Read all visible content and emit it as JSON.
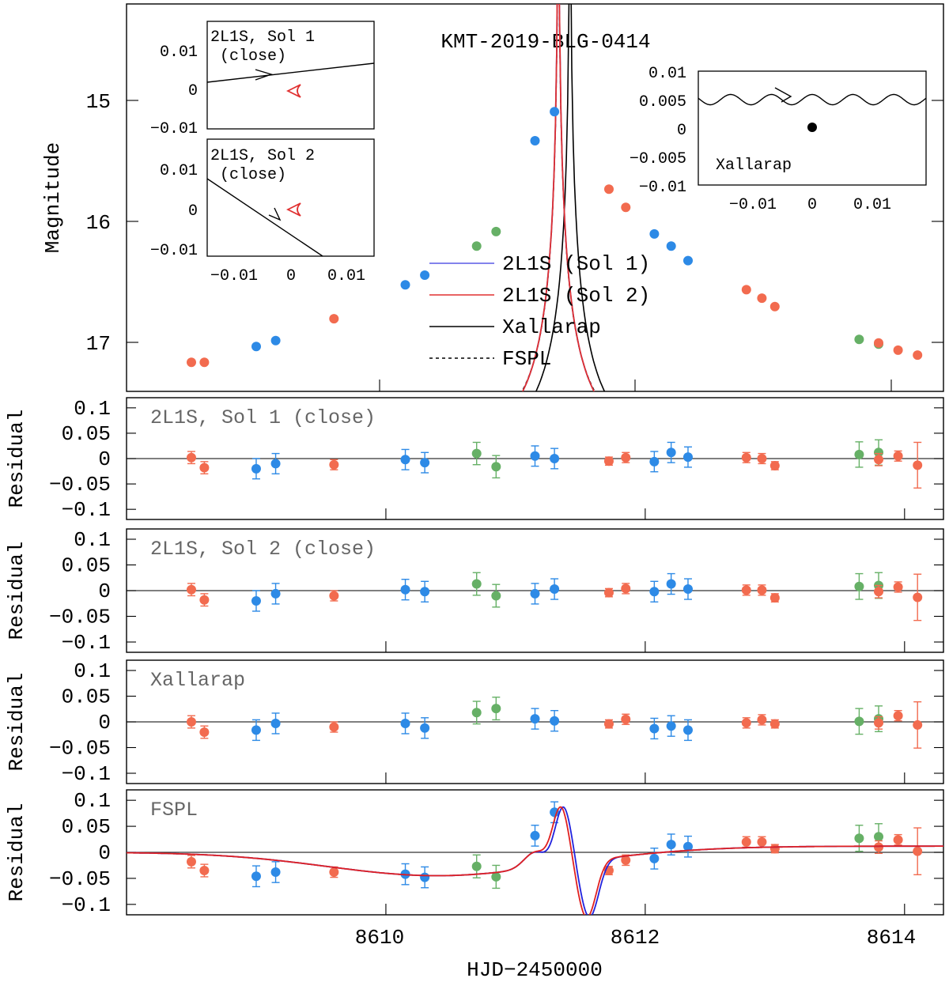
{
  "chart_data": [
    {
      "type": "line",
      "title": "KMT-2019-BLG-0414",
      "xlabel": "HJD−2450000",
      "ylabel": "Magnitude",
      "xlim": [
        8608.0,
        8614.3
      ],
      "ylim": [
        17.4,
        14.2
      ],
      "x_ticks": [
        "8610",
        "8612",
        "8614"
      ],
      "y_ticks": [
        "15",
        "16",
        "17"
      ],
      "legend": [
        {
          "name": "2L1S (Sol 1)",
          "color": "#5a5ae6",
          "dash": false
        },
        {
          "name": "2L1S (Sol 2)",
          "color": "#e03030",
          "dash": false
        },
        {
          "name": "Xallarap",
          "color": "#000000",
          "dash": false
        },
        {
          "name": "FSPL",
          "color": "#000000",
          "dash": true
        }
      ],
      "colors": {
        "KMTC": "#f26b4f",
        "KMTS": "#2d8ae6",
        "KMTA": "#66b066"
      },
      "models": {
        "sol1": {
          "t0": 8611.33,
          "u0": 0.005,
          "tE": 0.62,
          "color": "#5a5ae6"
        },
        "sol2": {
          "t0": 8611.33,
          "u0": 0.005,
          "tE": 0.62,
          "color": "#e03030"
        },
        "xallarap": {
          "t0": 8611.42,
          "u0": 0.0052,
          "tE": 0.6,
          "color": "#000000"
        },
        "fspl": {
          "t0": 8611.33,
          "u0": 0.006,
          "tE": 0.65,
          "color": "#000000"
        }
      },
      "points": [
        {
          "x": 8608.5,
          "mag": 17.16,
          "site": "KMTC"
        },
        {
          "x": 8608.6,
          "mag": 17.16,
          "site": "KMTC"
        },
        {
          "x": 8609.0,
          "mag": 17.03,
          "site": "KMTS"
        },
        {
          "x": 8609.15,
          "mag": 16.98,
          "site": "KMTS"
        },
        {
          "x": 8609.6,
          "mag": 16.8,
          "site": "KMTC"
        },
        {
          "x": 8610.15,
          "mag": 16.52,
          "site": "KMTS"
        },
        {
          "x": 8610.3,
          "mag": 16.44,
          "site": "KMTS"
        },
        {
          "x": 8610.7,
          "mag": 16.2,
          "site": "KMTA"
        },
        {
          "x": 8610.85,
          "mag": 16.08,
          "site": "KMTA"
        },
        {
          "x": 8611.15,
          "mag": 15.33,
          "site": "KMTS"
        },
        {
          "x": 8611.3,
          "mag": 15.09,
          "site": "KMTS"
        },
        {
          "x": 8611.72,
          "mag": 15.73,
          "site": "KMTC"
        },
        {
          "x": 8611.85,
          "mag": 15.88,
          "site": "KMTC"
        },
        {
          "x": 8612.07,
          "mag": 16.1,
          "site": "KMTS"
        },
        {
          "x": 8612.2,
          "mag": 16.2,
          "site": "KMTS"
        },
        {
          "x": 8612.33,
          "mag": 16.32,
          "site": "KMTS"
        },
        {
          "x": 8612.78,
          "mag": 16.56,
          "site": "KMTC"
        },
        {
          "x": 8612.9,
          "mag": 16.63,
          "site": "KMTC"
        },
        {
          "x": 8613.0,
          "mag": 16.7,
          "site": "KMTC"
        },
        {
          "x": 8613.65,
          "mag": 16.97,
          "site": "KMTA"
        },
        {
          "x": 8613.8,
          "mag": 17.01,
          "site": "KMTA"
        },
        {
          "x": 8613.8,
          "mag": 17.0,
          "site": "KMTC"
        },
        {
          "x": 8613.95,
          "mag": 17.06,
          "site": "KMTC"
        },
        {
          "x": 8614.1,
          "mag": 17.1,
          "site": "KMTC"
        }
      ]
    },
    {
      "type": "scatter",
      "title": "2L1S, Sol 1 (close)",
      "ylabel": "Residual",
      "ylim": [
        -0.12,
        0.12
      ],
      "y_ticks": [
        "0.1",
        "0.05",
        "0",
        "−0.05",
        "−0.1"
      ],
      "points": [
        {
          "x": 8608.5,
          "y": 0.002,
          "e": 0.012,
          "site": "KMTC"
        },
        {
          "x": 8608.6,
          "y": -0.018,
          "e": 0.012,
          "site": "KMTC"
        },
        {
          "x": 8609.0,
          "y": -0.02,
          "e": 0.02,
          "site": "KMTS"
        },
        {
          "x": 8609.15,
          "y": -0.01,
          "e": 0.02,
          "site": "KMTS"
        },
        {
          "x": 8609.6,
          "y": -0.012,
          "e": 0.01,
          "site": "KMTC"
        },
        {
          "x": 8610.15,
          "y": -0.002,
          "e": 0.02,
          "site": "KMTS"
        },
        {
          "x": 8610.3,
          "y": -0.008,
          "e": 0.02,
          "site": "KMTS"
        },
        {
          "x": 8610.7,
          "y": 0.01,
          "e": 0.022,
          "site": "KMTA"
        },
        {
          "x": 8610.85,
          "y": -0.016,
          "e": 0.022,
          "site": "KMTA"
        },
        {
          "x": 8611.15,
          "y": 0.005,
          "e": 0.02,
          "site": "KMTS"
        },
        {
          "x": 8611.3,
          "y": 0.0,
          "e": 0.02,
          "site": "KMTS"
        },
        {
          "x": 8611.72,
          "y": -0.005,
          "e": 0.008,
          "site": "KMTC"
        },
        {
          "x": 8611.85,
          "y": 0.002,
          "e": 0.01,
          "site": "KMTC"
        },
        {
          "x": 8612.07,
          "y": -0.006,
          "e": 0.02,
          "site": "KMTS"
        },
        {
          "x": 8612.2,
          "y": 0.012,
          "e": 0.02,
          "site": "KMTS"
        },
        {
          "x": 8612.33,
          "y": 0.003,
          "e": 0.02,
          "site": "KMTS"
        },
        {
          "x": 8612.78,
          "y": 0.002,
          "e": 0.01,
          "site": "KMTC"
        },
        {
          "x": 8612.9,
          "y": 0.0,
          "e": 0.01,
          "site": "KMTC"
        },
        {
          "x": 8613.0,
          "y": -0.014,
          "e": 0.008,
          "site": "KMTC"
        },
        {
          "x": 8613.65,
          "y": 0.008,
          "e": 0.025,
          "site": "KMTA"
        },
        {
          "x": 8613.8,
          "y": 0.012,
          "e": 0.025,
          "site": "KMTA"
        },
        {
          "x": 8613.8,
          "y": -0.002,
          "e": 0.012,
          "site": "KMTC"
        },
        {
          "x": 8613.95,
          "y": 0.005,
          "e": 0.01,
          "site": "KMTC"
        },
        {
          "x": 8614.1,
          "y": -0.013,
          "e": 0.045,
          "site": "KMTC"
        }
      ]
    },
    {
      "type": "scatter",
      "title": "2L1S, Sol 2 (close)",
      "ylabel": "Residual",
      "ylim": [
        -0.12,
        0.12
      ],
      "y_ticks": [
        "0.1",
        "0.05",
        "0",
        "−0.05",
        "−0.1"
      ],
      "points": [
        {
          "x": 8608.5,
          "y": 0.002,
          "e": 0.012,
          "site": "KMTC"
        },
        {
          "x": 8608.6,
          "y": -0.018,
          "e": 0.012,
          "site": "KMTC"
        },
        {
          "x": 8609.0,
          "y": -0.02,
          "e": 0.02,
          "site": "KMTS"
        },
        {
          "x": 8609.15,
          "y": -0.006,
          "e": 0.02,
          "site": "KMTS"
        },
        {
          "x": 8609.6,
          "y": -0.01,
          "e": 0.01,
          "site": "KMTC"
        },
        {
          "x": 8610.15,
          "y": 0.002,
          "e": 0.02,
          "site": "KMTS"
        },
        {
          "x": 8610.3,
          "y": -0.002,
          "e": 0.02,
          "site": "KMTS"
        },
        {
          "x": 8610.7,
          "y": 0.013,
          "e": 0.022,
          "site": "KMTA"
        },
        {
          "x": 8610.85,
          "y": -0.01,
          "e": 0.022,
          "site": "KMTA"
        },
        {
          "x": 8611.15,
          "y": -0.006,
          "e": 0.02,
          "site": "KMTS"
        },
        {
          "x": 8611.3,
          "y": 0.003,
          "e": 0.02,
          "site": "KMTS"
        },
        {
          "x": 8611.72,
          "y": -0.004,
          "e": 0.008,
          "site": "KMTC"
        },
        {
          "x": 8611.85,
          "y": 0.004,
          "e": 0.01,
          "site": "KMTC"
        },
        {
          "x": 8612.07,
          "y": -0.002,
          "e": 0.02,
          "site": "KMTS"
        },
        {
          "x": 8612.2,
          "y": 0.013,
          "e": 0.02,
          "site": "KMTS"
        },
        {
          "x": 8612.33,
          "y": 0.003,
          "e": 0.02,
          "site": "KMTS"
        },
        {
          "x": 8612.78,
          "y": 0.001,
          "e": 0.01,
          "site": "KMTC"
        },
        {
          "x": 8612.9,
          "y": 0.001,
          "e": 0.01,
          "site": "KMTC"
        },
        {
          "x": 8613.0,
          "y": -0.014,
          "e": 0.008,
          "site": "KMTC"
        },
        {
          "x": 8613.65,
          "y": 0.008,
          "e": 0.025,
          "site": "KMTA"
        },
        {
          "x": 8613.8,
          "y": 0.01,
          "e": 0.025,
          "site": "KMTA"
        },
        {
          "x": 8613.8,
          "y": -0.002,
          "e": 0.012,
          "site": "KMTC"
        },
        {
          "x": 8613.95,
          "y": 0.007,
          "e": 0.01,
          "site": "KMTC"
        },
        {
          "x": 8614.1,
          "y": -0.013,
          "e": 0.045,
          "site": "KMTC"
        }
      ]
    },
    {
      "type": "scatter",
      "title": "Xallarap",
      "ylabel": "Residual",
      "ylim": [
        -0.12,
        0.12
      ],
      "y_ticks": [
        "0.1",
        "0.05",
        "0",
        "−0.05",
        "−0.1"
      ],
      "points": [
        {
          "x": 8608.5,
          "y": 0.0,
          "e": 0.012,
          "site": "KMTC"
        },
        {
          "x": 8608.6,
          "y": -0.02,
          "e": 0.012,
          "site": "KMTC"
        },
        {
          "x": 8609.0,
          "y": -0.016,
          "e": 0.02,
          "site": "KMTS"
        },
        {
          "x": 8609.15,
          "y": -0.003,
          "e": 0.02,
          "site": "KMTS"
        },
        {
          "x": 8609.6,
          "y": -0.01,
          "e": 0.01,
          "site": "KMTC"
        },
        {
          "x": 8610.15,
          "y": -0.003,
          "e": 0.02,
          "site": "KMTS"
        },
        {
          "x": 8610.3,
          "y": -0.012,
          "e": 0.02,
          "site": "KMTS"
        },
        {
          "x": 8610.7,
          "y": 0.018,
          "e": 0.022,
          "site": "KMTA"
        },
        {
          "x": 8610.85,
          "y": 0.026,
          "e": 0.022,
          "site": "KMTA"
        },
        {
          "x": 8611.15,
          "y": 0.006,
          "e": 0.02,
          "site": "KMTS"
        },
        {
          "x": 8611.3,
          "y": 0.002,
          "e": 0.02,
          "site": "KMTS"
        },
        {
          "x": 8611.72,
          "y": -0.004,
          "e": 0.008,
          "site": "KMTC"
        },
        {
          "x": 8611.85,
          "y": 0.005,
          "e": 0.01,
          "site": "KMTC"
        },
        {
          "x": 8612.07,
          "y": -0.013,
          "e": 0.02,
          "site": "KMTS"
        },
        {
          "x": 8612.2,
          "y": -0.008,
          "e": 0.02,
          "site": "KMTS"
        },
        {
          "x": 8612.33,
          "y": -0.016,
          "e": 0.02,
          "site": "KMTS"
        },
        {
          "x": 8612.78,
          "y": -0.002,
          "e": 0.01,
          "site": "KMTC"
        },
        {
          "x": 8612.9,
          "y": 0.004,
          "e": 0.01,
          "site": "KMTC"
        },
        {
          "x": 8613.0,
          "y": -0.004,
          "e": 0.008,
          "site": "KMTC"
        },
        {
          "x": 8613.65,
          "y": 0.001,
          "e": 0.025,
          "site": "KMTA"
        },
        {
          "x": 8613.8,
          "y": 0.006,
          "e": 0.025,
          "site": "KMTA"
        },
        {
          "x": 8613.8,
          "y": -0.002,
          "e": 0.012,
          "site": "KMTC"
        },
        {
          "x": 8613.95,
          "y": 0.012,
          "e": 0.01,
          "site": "KMTC"
        },
        {
          "x": 8614.1,
          "y": -0.006,
          "e": 0.045,
          "site": "KMTC"
        }
      ]
    },
    {
      "type": "scatter",
      "title": "FSPL",
      "ylabel": "Residual",
      "xlabel": "HJD−2450000",
      "ylim": [
        -0.12,
        0.12
      ],
      "y_ticks": [
        "0.1",
        "0.05",
        "0",
        "−0.05",
        "−0.1"
      ],
      "x_ticks": [
        "8610",
        "8612",
        "8614"
      ],
      "points": [
        {
          "x": 8608.5,
          "y": -0.018,
          "e": 0.012,
          "site": "KMTC"
        },
        {
          "x": 8608.6,
          "y": -0.035,
          "e": 0.012,
          "site": "KMTC"
        },
        {
          "x": 8609.0,
          "y": -0.046,
          "e": 0.02,
          "site": "KMTS"
        },
        {
          "x": 8609.15,
          "y": -0.038,
          "e": 0.02,
          "site": "KMTS"
        },
        {
          "x": 8609.6,
          "y": -0.038,
          "e": 0.01,
          "site": "KMTC"
        },
        {
          "x": 8610.15,
          "y": -0.042,
          "e": 0.02,
          "site": "KMTS"
        },
        {
          "x": 8610.3,
          "y": -0.048,
          "e": 0.02,
          "site": "KMTS"
        },
        {
          "x": 8610.7,
          "y": -0.027,
          "e": 0.022,
          "site": "KMTA"
        },
        {
          "x": 8610.85,
          "y": -0.047,
          "e": 0.022,
          "site": "KMTA"
        },
        {
          "x": 8611.15,
          "y": 0.032,
          "e": 0.02,
          "site": "KMTS"
        },
        {
          "x": 8611.3,
          "y": 0.077,
          "e": 0.02,
          "site": "KMTS"
        },
        {
          "x": 8611.72,
          "y": -0.035,
          "e": 0.008,
          "site": "KMTC"
        },
        {
          "x": 8611.85,
          "y": -0.015,
          "e": 0.01,
          "site": "KMTC"
        },
        {
          "x": 8612.07,
          "y": -0.012,
          "e": 0.02,
          "site": "KMTS"
        },
        {
          "x": 8612.2,
          "y": 0.015,
          "e": 0.02,
          "site": "KMTS"
        },
        {
          "x": 8612.33,
          "y": 0.011,
          "e": 0.02,
          "site": "KMTS"
        },
        {
          "x": 8612.78,
          "y": 0.02,
          "e": 0.01,
          "site": "KMTC"
        },
        {
          "x": 8612.9,
          "y": 0.02,
          "e": 0.01,
          "site": "KMTC"
        },
        {
          "x": 8613.0,
          "y": 0.007,
          "e": 0.008,
          "site": "KMTC"
        },
        {
          "x": 8613.65,
          "y": 0.027,
          "e": 0.025,
          "site": "KMTA"
        },
        {
          "x": 8613.8,
          "y": 0.03,
          "e": 0.025,
          "site": "KMTA"
        },
        {
          "x": 8613.8,
          "y": 0.01,
          "e": 0.012,
          "site": "KMTC"
        },
        {
          "x": 8613.95,
          "y": 0.024,
          "e": 0.01,
          "site": "KMTC"
        },
        {
          "x": 8614.1,
          "y": 0.002,
          "e": 0.045,
          "site": "KMTC"
        }
      ]
    }
  ],
  "insets": {
    "sol1": {
      "label_line1": "2L1S, Sol 1",
      "label_line2": "(close)",
      "y_ticks": [
        "0.01",
        "0",
        "−0.01"
      ],
      "range": [
        -0.015,
        0.015
      ],
      "y_range": [
        -0.013,
        0.018
      ]
    },
    "sol2": {
      "label_line1": "2L1S, Sol 2",
      "label_line2": "(close)",
      "y_ticks": [
        "0.01",
        "0",
        "−0.01"
      ],
      "x_ticks": [
        "−0.01",
        "0",
        "0.01"
      ],
      "range": [
        -0.015,
        0.015
      ],
      "y_range": [
        -0.013,
        0.018
      ]
    },
    "xallarap": {
      "label": "Xallarap",
      "y_ticks": [
        "0.01",
        "0.005",
        "0",
        "−0.005",
        "−0.01"
      ],
      "x_ticks": [
        "−0.01",
        "0",
        "0.01"
      ],
      "range": [
        -0.019,
        0.019
      ],
      "y_range": [
        -0.01,
        0.01
      ]
    }
  }
}
